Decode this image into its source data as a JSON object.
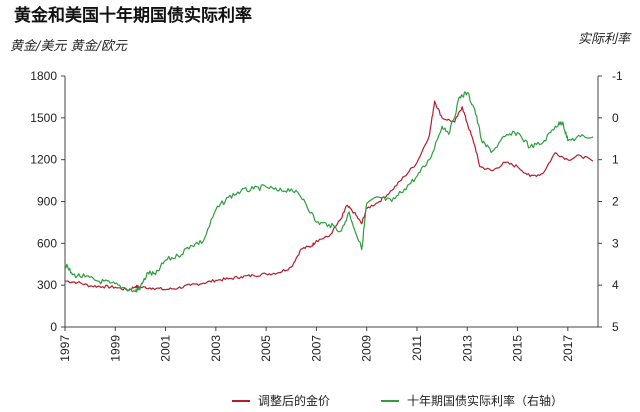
{
  "chart_data": {
    "type": "line",
    "title": "黄金和美国十年期国债实际利率",
    "left_axis_label": "黄金/美元  黄金/欧元",
    "right_axis_label": "实际利率",
    "left_ylim": [
      0,
      1800
    ],
    "left_ticks": [
      "1800",
      "1500",
      "1200",
      "900",
      "600",
      "300",
      "0"
    ],
    "right_ylim": [
      -1,
      5
    ],
    "right_axis_inverted": true,
    "right_ticks": [
      "-1",
      "0",
      "1",
      "2",
      "3",
      "4",
      "5"
    ],
    "x_range": [
      1997,
      2018.2
    ],
    "x_ticks": [
      "1997",
      "1999",
      "2001",
      "2003",
      "2005",
      "2007",
      "2009",
      "2011",
      "2013",
      "2015",
      "2017"
    ],
    "grid": false,
    "legend_position": "bottom",
    "series": [
      {
        "name": "调整后的金价",
        "axis": "left",
        "color": "#b71c2c",
        "points": [
          [
            1997.0,
            330
          ],
          [
            1997.5,
            320
          ],
          [
            1998.0,
            295
          ],
          [
            1998.5,
            290
          ],
          [
            1999.0,
            285
          ],
          [
            1999.5,
            265
          ],
          [
            1999.8,
            290
          ],
          [
            2000.0,
            285
          ],
          [
            2000.5,
            280
          ],
          [
            2001.0,
            268
          ],
          [
            2001.5,
            280
          ],
          [
            2002.0,
            300
          ],
          [
            2002.5,
            315
          ],
          [
            2003.0,
            335
          ],
          [
            2003.5,
            345
          ],
          [
            2004.0,
            360
          ],
          [
            2004.5,
            370
          ],
          [
            2005.0,
            380
          ],
          [
            2005.5,
            390
          ],
          [
            2006.0,
            430
          ],
          [
            2006.4,
            560
          ],
          [
            2006.8,
            580
          ],
          [
            2007.0,
            620
          ],
          [
            2007.5,
            650
          ],
          [
            2008.0,
            780
          ],
          [
            2008.2,
            870
          ],
          [
            2008.5,
            820
          ],
          [
            2008.8,
            740
          ],
          [
            2009.0,
            850
          ],
          [
            2009.5,
            900
          ],
          [
            2010.0,
            980
          ],
          [
            2010.5,
            1080
          ],
          [
            2011.0,
            1180
          ],
          [
            2011.5,
            1380
          ],
          [
            2011.7,
            1620
          ],
          [
            2012.0,
            1500
          ],
          [
            2012.5,
            1470
          ],
          [
            2012.8,
            1580
          ],
          [
            2013.0,
            1460
          ],
          [
            2013.3,
            1300
          ],
          [
            2013.5,
            1150
          ],
          [
            2014.0,
            1120
          ],
          [
            2014.5,
            1180
          ],
          [
            2015.0,
            1150
          ],
          [
            2015.5,
            1080
          ],
          [
            2016.0,
            1100
          ],
          [
            2016.5,
            1250
          ],
          [
            2017.0,
            1200
          ],
          [
            2017.5,
            1230
          ],
          [
            2018.0,
            1190
          ]
        ]
      },
      {
        "name": "十年期国债实际利率（右轴）",
        "axis": "right",
        "color": "#2e9e3e",
        "points": [
          [
            1997.0,
            3.5
          ],
          [
            1997.3,
            3.75
          ],
          [
            1997.8,
            3.8
          ],
          [
            1998.3,
            3.9
          ],
          [
            1998.8,
            3.95
          ],
          [
            1999.3,
            4.05
          ],
          [
            1999.8,
            4.15
          ],
          [
            2000.0,
            4.05
          ],
          [
            2000.3,
            3.7
          ],
          [
            2000.6,
            3.75
          ],
          [
            2001.0,
            3.4
          ],
          [
            2001.5,
            3.3
          ],
          [
            2002.0,
            3.05
          ],
          [
            2002.5,
            2.95
          ],
          [
            2003.0,
            2.2
          ],
          [
            2003.5,
            1.9
          ],
          [
            2004.0,
            1.75
          ],
          [
            2004.5,
            1.7
          ],
          [
            2005.0,
            1.65
          ],
          [
            2005.5,
            1.75
          ],
          [
            2006.0,
            1.7
          ],
          [
            2006.5,
            1.95
          ],
          [
            2007.0,
            2.5
          ],
          [
            2007.5,
            2.55
          ],
          [
            2008.0,
            2.7
          ],
          [
            2008.3,
            2.25
          ],
          [
            2008.8,
            3.15
          ],
          [
            2009.0,
            2.05
          ],
          [
            2009.5,
            1.9
          ],
          [
            2010.0,
            2.0
          ],
          [
            2010.5,
            1.7
          ],
          [
            2011.0,
            1.4
          ],
          [
            2011.5,
            1.0
          ],
          [
            2012.0,
            0.2
          ],
          [
            2012.3,
            0.35
          ],
          [
            2012.7,
            -0.5
          ],
          [
            2013.0,
            -0.6
          ],
          [
            2013.3,
            -0.2
          ],
          [
            2013.6,
            0.6
          ],
          [
            2014.0,
            0.8
          ],
          [
            2014.5,
            0.45
          ],
          [
            2015.0,
            0.35
          ],
          [
            2015.5,
            0.7
          ],
          [
            2016.0,
            0.6
          ],
          [
            2016.5,
            0.2
          ],
          [
            2016.8,
            0.1
          ],
          [
            2017.0,
            0.55
          ],
          [
            2017.5,
            0.45
          ],
          [
            2018.0,
            0.45
          ]
        ]
      }
    ]
  }
}
